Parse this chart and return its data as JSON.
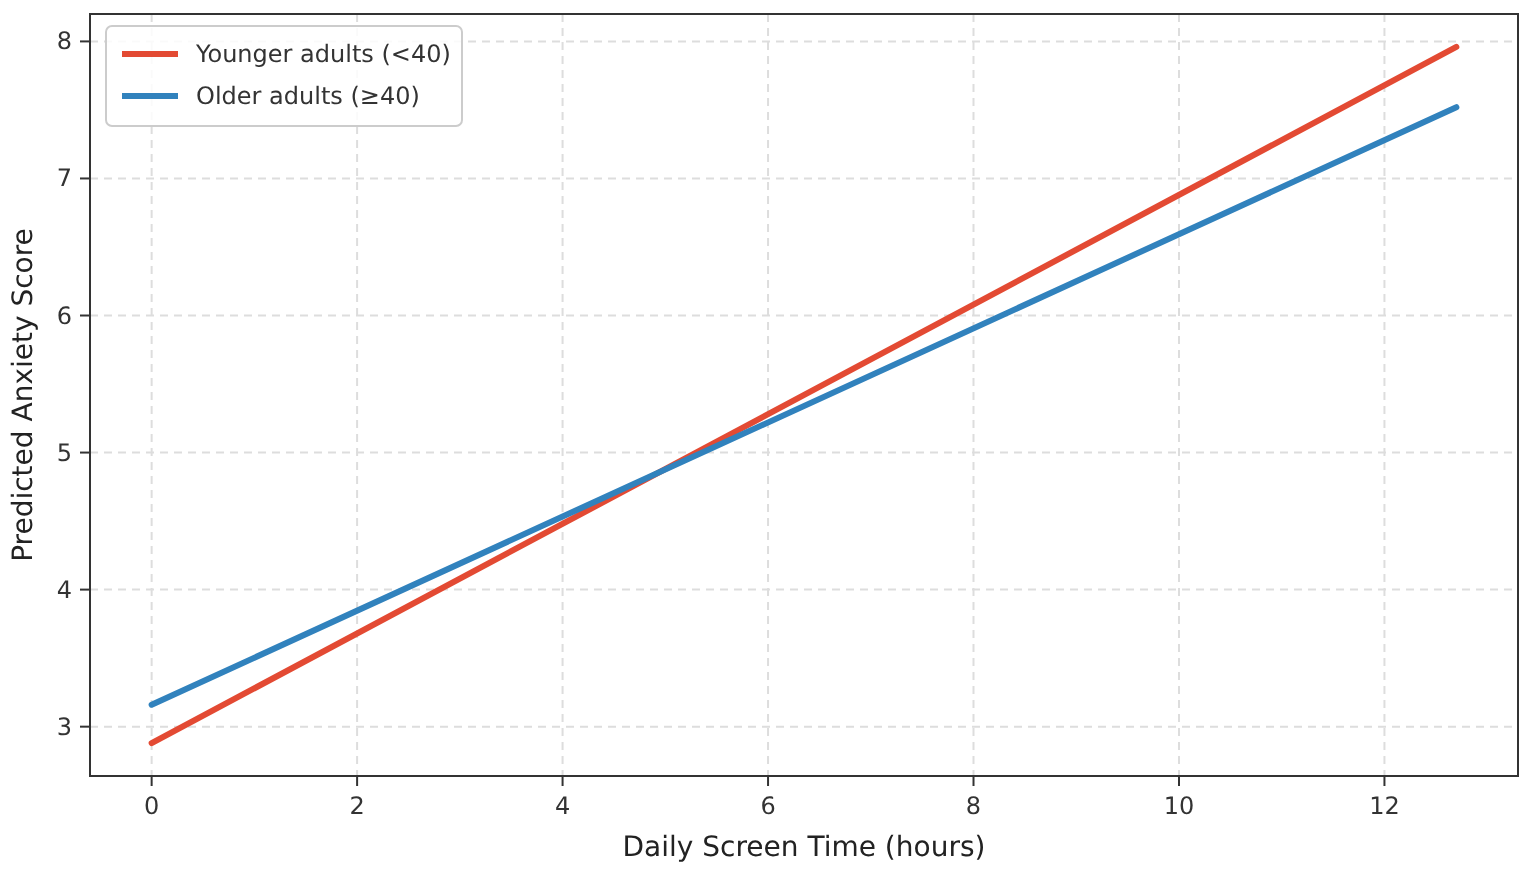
{
  "chart_data": {
    "type": "line",
    "xlabel": "Daily Screen Time (hours)",
    "ylabel": "Predicted Anxiety Score",
    "x": [
      0,
      12.7
    ],
    "series": [
      {
        "name": "Younger adults (<40)",
        "color": "#e34a33",
        "values": [
          2.88,
          7.96
        ]
      },
      {
        "name": "Older adults (≥40)",
        "color": "#3182bd",
        "values": [
          3.16,
          7.52
        ]
      }
    ],
    "xlim": [
      -0.6,
      13.3
    ],
    "xticks": [
      0,
      2,
      4,
      6,
      8,
      10,
      12
    ],
    "ylim": [
      2.64,
      8.2
    ],
    "yticks": [
      3,
      4,
      5,
      6,
      7,
      8
    ],
    "grid": true,
    "legend": "top left",
    "marker": "none",
    "line_style": "solid"
  }
}
